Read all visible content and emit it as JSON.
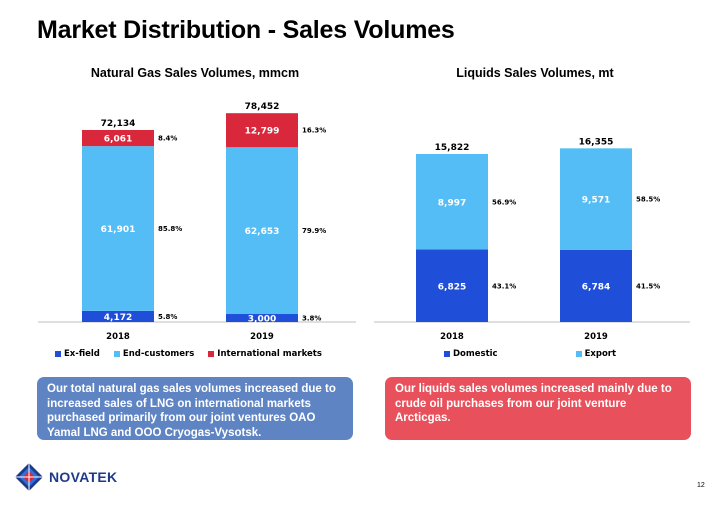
{
  "page": {
    "title": "Market Distribution - Sales Volumes",
    "page_number": "12",
    "logo_text": "NOVATEK"
  },
  "callouts": {
    "gas": "Our total natural gas sales volumes increased due to increased sales of LNG on international markets purchased primarily from our joint ventures OAO Yamal LNG and OOO Cryogas-Vysotsk.",
    "liquids": "Our liquids sales volumes increased mainly due to crude oil purchases from our joint venture Arcticgas."
  },
  "chart_data": [
    {
      "type": "bar",
      "stacked": true,
      "title": "Natural Gas Sales Volumes, mmcm",
      "categories": [
        "2018",
        "2019"
      ],
      "totals": [
        "72,134",
        "78,452"
      ],
      "series": [
        {
          "name": "Ex-field",
          "color": "#1f4fd8",
          "values": [
            4172,
            3000
          ],
          "labels": [
            "4,172",
            "3,000"
          ],
          "pct": [
            "5.8%",
            "3.8%"
          ]
        },
        {
          "name": "End-customers",
          "color": "#55bdf5",
          "values": [
            61901,
            62653
          ],
          "labels": [
            "61,901",
            "62,653"
          ],
          "pct": [
            "85.8%",
            "79.9%"
          ]
        },
        {
          "name": "International markets",
          "color": "#d9283b",
          "values": [
            6061,
            12799
          ],
          "labels": [
            "6,061",
            "12,799"
          ],
          "pct": [
            "8.4%",
            "16.3%"
          ]
        }
      ],
      "legend": "bottom"
    },
    {
      "type": "bar",
      "stacked": true,
      "title": "Liquids Sales Volumes, mt",
      "categories": [
        "2018",
        "2019"
      ],
      "totals": [
        "15,822",
        "16,355"
      ],
      "series": [
        {
          "name": "Domestic",
          "color": "#1f4fd8",
          "values": [
            6825,
            6784
          ],
          "labels": [
            "6,825",
            "6,784"
          ],
          "pct": [
            "43.1%",
            "41.5%"
          ]
        },
        {
          "name": "Export",
          "color": "#55bdf5",
          "values": [
            8997,
            9571
          ],
          "labels": [
            "8,997",
            "9,571"
          ],
          "pct": [
            "56.9%",
            "58.5%"
          ]
        }
      ],
      "legend": "bottom"
    }
  ]
}
